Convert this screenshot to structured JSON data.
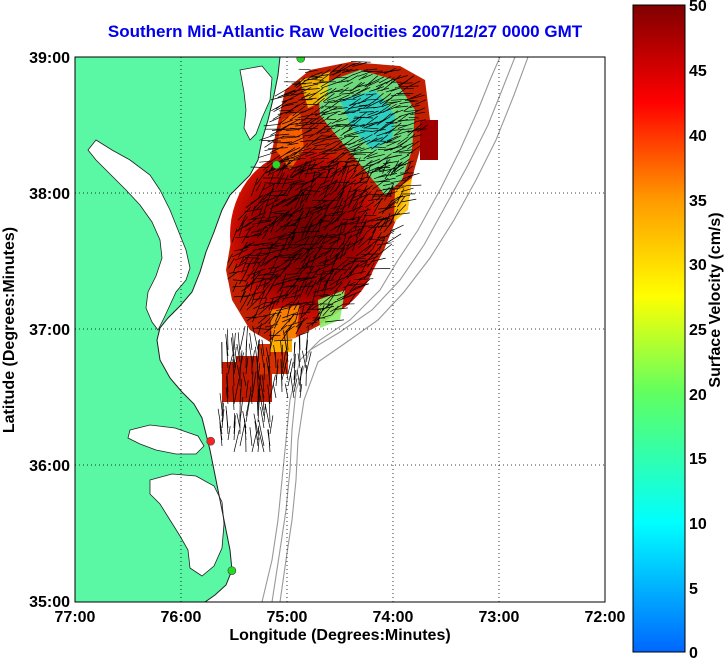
{
  "title": "Southern Mid-Atlantic Raw Velocities 2007/12/27 0000 GMT",
  "xaxis": {
    "label": "Longitude (Degrees:Minutes)",
    "ticks": [
      "77:00",
      "76:00",
      "75:00",
      "74:00",
      "73:00",
      "72:00"
    ]
  },
  "yaxis": {
    "label": "Latitude (Degrees:Minutes)",
    "ticks": [
      "39:00",
      "38:00",
      "37:00",
      "36:00",
      "35:00"
    ]
  },
  "colorbar": {
    "label": "Surface Velocity (cm/s)",
    "min": 0,
    "max": 50,
    "ticks": [
      "50",
      "45",
      "40",
      "35",
      "30",
      "25",
      "20",
      "15",
      "10",
      "5",
      "0"
    ]
  },
  "colors": {
    "land": "#5af7a5",
    "ocean": "#ffffff",
    "title": "#0000ee",
    "bathymetry": "#999999",
    "station_green": "#22dd22",
    "station_red": "#ff2020"
  },
  "stations": [
    {
      "lon": -74.87,
      "lat": 38.99,
      "color": "green"
    },
    {
      "lon": -75.1,
      "lat": 38.21,
      "color": "green"
    },
    {
      "lon": -75.72,
      "lat": 36.18,
      "color": "red"
    },
    {
      "lon": -75.52,
      "lat": 35.23,
      "color": "green"
    }
  ]
}
